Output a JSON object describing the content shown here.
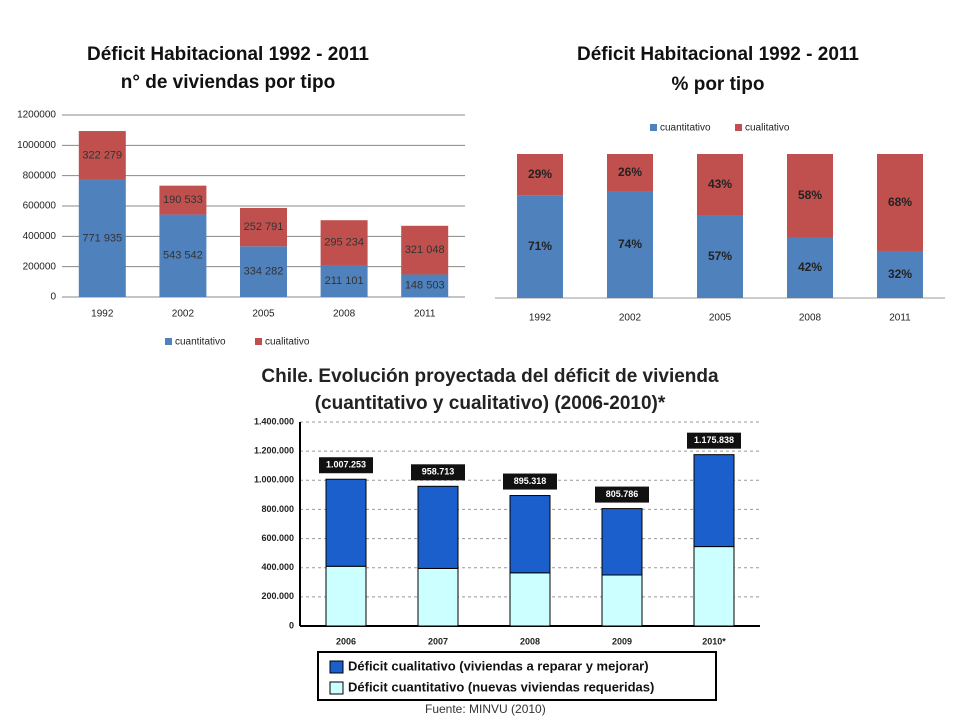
{
  "chart_data": [
    {
      "type": "stacked_bar",
      "title": "Déficit Habitacional 1992 - 2011",
      "subtitle": "n° de viviendas por tipo",
      "categories": [
        "1992",
        "2002",
        "2005",
        "2008",
        "2011"
      ],
      "series": [
        {
          "name": "cuantitativo",
          "color": "#4f81bd",
          "values": [
            771935,
            543542,
            334282,
            211101,
            148503
          ],
          "value_labels": [
            "771 935",
            "543 542",
            "334 282",
            "211 101",
            "148 503"
          ]
        },
        {
          "name": "cualitativo",
          "color": "#c0504d",
          "values": [
            322279,
            190533,
            252791,
            295234,
            321048
          ],
          "value_labels": [
            "322 279",
            "190 533",
            "252 791",
            "295 234",
            "321 048"
          ]
        }
      ],
      "ylim": [
        0,
        1200000
      ],
      "yticks": [
        0,
        200000,
        400000,
        600000,
        800000,
        1000000,
        1200000
      ],
      "grid": true,
      "legend": "bottom"
    },
    {
      "type": "stacked_bar",
      "title": "Déficit Habitacional 1992 - 2011",
      "subtitle": "% por tipo",
      "categories": [
        "1992",
        "2002",
        "2005",
        "2008",
        "2011"
      ],
      "series": [
        {
          "name": "cuantitativo",
          "color": "#4f81bd",
          "values": [
            71,
            74,
            57,
            42,
            32
          ],
          "value_labels": [
            "71%",
            "74%",
            "57%",
            "42%",
            "32%"
          ]
        },
        {
          "name": "cualitativo",
          "color": "#c0504d",
          "values": [
            29,
            26,
            43,
            58,
            68
          ],
          "value_labels": [
            "29%",
            "26%",
            "43%",
            "58%",
            "68%"
          ]
        }
      ],
      "ylim": [
        0,
        100
      ],
      "grid": false,
      "legend": "top"
    },
    {
      "type": "stacked_bar",
      "title": "Chile. Evolución proyectada del déficit de vivienda",
      "subtitle": "(cuantitativo y cualitativo) (2006-2010)*",
      "categories": [
        "2006",
        "2007",
        "2008",
        "2009",
        "2010*"
      ],
      "series": [
        {
          "name": "Déficit cuantitativo (nuevas viviendas requeridas)",
          "color": "#ccffff",
          "values": [
            410000,
            395000,
            365000,
            350000,
            545000
          ]
        },
        {
          "name": "Déficit cualitativo (viviendas a reparar y mejorar)",
          "color": "#1a5fcc",
          "values": [
            597253,
            563713,
            530318,
            455786,
            630838
          ]
        }
      ],
      "annotations": [
        {
          "value": 1007253,
          "label": "1.007.253"
        },
        {
          "value": 958713,
          "label": "958.713"
        },
        {
          "value": 895318,
          "label": "895.318"
        },
        {
          "value": 805786,
          "label": "805.786"
        },
        {
          "value": 1175838,
          "label": "1.175.838"
        }
      ],
      "ylim": [
        0,
        1400000
      ],
      "yticks": [
        0,
        {
          "value": 200000,
          "label": "200.000"
        },
        {
          "value": 400000,
          "label": "400.000"
        },
        {
          "value": 600000,
          "label": "600.000"
        },
        {
          "value": 800000,
          "label": "800.000"
        },
        {
          "value": 1000000,
          "label": "1.000.000"
        },
        {
          "value": 1200000,
          "label": "1.200.000"
        },
        {
          "value": 1400000,
          "label": "1.400.000"
        }
      ],
      "grid": true,
      "legend": "bottom",
      "source": "Fuente: MINVU (2010)"
    }
  ]
}
